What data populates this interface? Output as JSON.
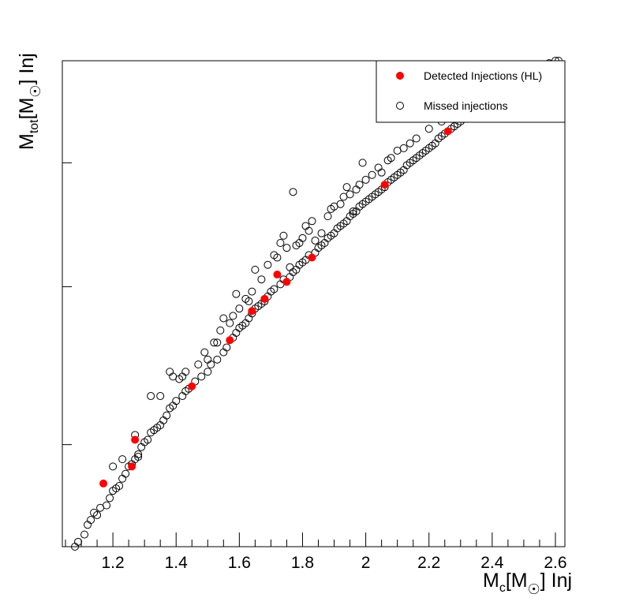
{
  "chart_data": {
    "type": "scatter",
    "xlabel": {
      "main": "M",
      "sub": "c",
      "rest": "[M",
      "sun_sub": "☉",
      "tail": "] Inj"
    },
    "ylabel": {
      "main": "M",
      "sub": "tot",
      "rest": "[M",
      "sun_sub": "☉",
      "tail": "] Inj"
    },
    "xlim": [
      1.04,
      2.63
    ],
    "x_ticks": [
      "1.2",
      "1.4",
      "1.6",
      "1.8",
      "2",
      "2.2",
      "2.4",
      "2.6"
    ],
    "x_tick_values": [
      1.2,
      1.4,
      1.6,
      1.8,
      2.0,
      2.2,
      2.4,
      2.6
    ],
    "y_tick_fractions": [
      0.21,
      0.535,
      0.79
    ],
    "grid": false,
    "legend_position": "top-right",
    "colors": {
      "detected": "#ff0000",
      "missed_edge": "#000000",
      "frame": "#000000"
    },
    "series": [
      {
        "name": "Detected Injections (HL)",
        "marker": "filled-circle",
        "points": [
          [
            1.17,
            0.13
          ],
          [
            1.27,
            0.22
          ],
          [
            1.26,
            0.165
          ],
          [
            1.45,
            0.33
          ],
          [
            1.57,
            0.425
          ],
          [
            1.64,
            0.485
          ],
          [
            1.68,
            0.51
          ],
          [
            1.72,
            0.56
          ],
          [
            1.75,
            0.545
          ],
          [
            1.83,
            0.595
          ],
          [
            2.06,
            0.745
          ],
          [
            2.26,
            0.855
          ]
        ]
      },
      {
        "name": "Missed injections",
        "marker": "open-circle",
        "points": [
          [
            1.08,
            0.0
          ],
          [
            1.09,
            0.01
          ],
          [
            1.11,
            0.025
          ],
          [
            1.12,
            0.045
          ],
          [
            1.13,
            0.055
          ],
          [
            1.14,
            0.07
          ],
          [
            1.15,
            0.065
          ],
          [
            1.16,
            0.08
          ],
          [
            1.18,
            0.085
          ],
          [
            1.19,
            0.1
          ],
          [
            1.2,
            0.115
          ],
          [
            1.21,
            0.12
          ],
          [
            1.22,
            0.125
          ],
          [
            1.23,
            0.14
          ],
          [
            1.24,
            0.15
          ],
          [
            1.25,
            0.165
          ],
          [
            1.26,
            0.17
          ],
          [
            1.27,
            0.18
          ],
          [
            1.28,
            0.19
          ],
          [
            1.27,
            0.23
          ],
          [
            1.29,
            0.205
          ],
          [
            1.3,
            0.215
          ],
          [
            1.31,
            0.22
          ],
          [
            1.32,
            0.235
          ],
          [
            1.33,
            0.24
          ],
          [
            1.34,
            0.245
          ],
          [
            1.35,
            0.25
          ],
          [
            1.36,
            0.26
          ],
          [
            1.37,
            0.27
          ],
          [
            1.38,
            0.285
          ],
          [
            1.39,
            0.29
          ],
          [
            1.4,
            0.3
          ],
          [
            1.42,
            0.31
          ],
          [
            1.43,
            0.32
          ],
          [
            1.44,
            0.325
          ],
          [
            1.46,
            0.34
          ],
          [
            1.48,
            0.35
          ],
          [
            1.5,
            0.36
          ],
          [
            1.51,
            0.375
          ],
          [
            1.53,
            0.385
          ],
          [
            1.55,
            0.4
          ],
          [
            1.56,
            0.41
          ],
          [
            1.58,
            0.43
          ],
          [
            1.59,
            0.44
          ],
          [
            1.6,
            0.45
          ],
          [
            1.61,
            0.455
          ],
          [
            1.62,
            0.46
          ],
          [
            1.63,
            0.47
          ],
          [
            1.64,
            0.48
          ],
          [
            1.65,
            0.49
          ],
          [
            1.66,
            0.495
          ],
          [
            1.67,
            0.5
          ],
          [
            1.68,
            0.505
          ],
          [
            1.69,
            0.515
          ],
          [
            1.7,
            0.525
          ],
          [
            1.71,
            0.53
          ],
          [
            1.73,
            0.54
          ],
          [
            1.74,
            0.55
          ],
          [
            1.76,
            0.555
          ],
          [
            1.77,
            0.565
          ],
          [
            1.78,
            0.57
          ],
          [
            1.79,
            0.58
          ],
          [
            1.8,
            0.585
          ],
          [
            1.81,
            0.59
          ],
          [
            1.82,
            0.6
          ],
          [
            1.84,
            0.605
          ],
          [
            1.85,
            0.615
          ],
          [
            1.86,
            0.62
          ],
          [
            1.87,
            0.625
          ],
          [
            1.88,
            0.635
          ],
          [
            1.89,
            0.64
          ],
          [
            1.9,
            0.645
          ],
          [
            1.91,
            0.655
          ],
          [
            1.92,
            0.66
          ],
          [
            1.93,
            0.665
          ],
          [
            1.94,
            0.67
          ],
          [
            1.95,
            0.68
          ],
          [
            1.96,
            0.685
          ],
          [
            1.97,
            0.69
          ],
          [
            1.98,
            0.7
          ],
          [
            1.99,
            0.705
          ],
          [
            2.0,
            0.71
          ],
          [
            2.01,
            0.715
          ],
          [
            2.02,
            0.72
          ],
          [
            2.03,
            0.725
          ],
          [
            2.04,
            0.73
          ],
          [
            2.05,
            0.735
          ],
          [
            2.06,
            0.74
          ],
          [
            2.07,
            0.75
          ],
          [
            2.08,
            0.755
          ],
          [
            2.09,
            0.76
          ],
          [
            2.1,
            0.765
          ],
          [
            2.11,
            0.77
          ],
          [
            2.12,
            0.775
          ],
          [
            2.13,
            0.785
          ],
          [
            2.14,
            0.79
          ],
          [
            2.15,
            0.795
          ],
          [
            2.16,
            0.8
          ],
          [
            2.17,
            0.805
          ],
          [
            2.18,
            0.81
          ],
          [
            2.19,
            0.815
          ],
          [
            2.2,
            0.82
          ],
          [
            2.21,
            0.825
          ],
          [
            2.22,
            0.83
          ],
          [
            2.23,
            0.84
          ],
          [
            2.24,
            0.845
          ],
          [
            2.25,
            0.85
          ],
          [
            2.27,
            0.86
          ],
          [
            2.28,
            0.865
          ],
          [
            2.29,
            0.87
          ],
          [
            2.3,
            0.875
          ],
          [
            2.31,
            0.88
          ],
          [
            2.32,
            0.885
          ],
          [
            2.33,
            0.89
          ],
          [
            2.34,
            0.895
          ],
          [
            2.35,
            0.9
          ],
          [
            2.36,
            0.905
          ],
          [
            2.37,
            0.91
          ],
          [
            2.38,
            0.915
          ],
          [
            2.39,
            0.92
          ],
          [
            2.4,
            0.925
          ],
          [
            2.41,
            0.93
          ],
          [
            2.42,
            0.935
          ],
          [
            2.43,
            0.94
          ],
          [
            2.44,
            0.945
          ],
          [
            2.46,
            0.955
          ],
          [
            2.48,
            0.965
          ],
          [
            2.5,
            0.97
          ],
          [
            2.52,
            0.98
          ],
          [
            2.55,
            0.99
          ],
          [
            2.58,
            0.995
          ],
          [
            2.6,
            1.0
          ],
          [
            2.61,
            1.0
          ],
          [
            1.2,
            0.165
          ],
          [
            1.23,
            0.18
          ],
          [
            1.28,
            0.185
          ],
          [
            1.32,
            0.31
          ],
          [
            1.35,
            0.31
          ],
          [
            1.38,
            0.36
          ],
          [
            1.39,
            0.35
          ],
          [
            1.41,
            0.345
          ],
          [
            1.42,
            0.35
          ],
          [
            1.43,
            0.36
          ],
          [
            1.47,
            0.375
          ],
          [
            1.5,
            0.385
          ],
          [
            1.49,
            0.4
          ],
          [
            1.52,
            0.42
          ],
          [
            1.53,
            0.42
          ],
          [
            1.55,
            0.47
          ],
          [
            1.54,
            0.445
          ],
          [
            1.57,
            0.46
          ],
          [
            1.58,
            0.475
          ],
          [
            1.59,
            0.52
          ],
          [
            1.6,
            0.49
          ],
          [
            1.62,
            0.51
          ],
          [
            1.63,
            0.505
          ],
          [
            1.65,
            0.57
          ],
          [
            1.64,
            0.525
          ],
          [
            1.67,
            0.55
          ],
          [
            1.69,
            0.58
          ],
          [
            1.71,
            0.6
          ],
          [
            1.72,
            0.595
          ],
          [
            1.73,
            0.625
          ],
          [
            1.74,
            0.64
          ],
          [
            1.75,
            0.615
          ],
          [
            1.76,
            0.575
          ],
          [
            1.77,
            0.73
          ],
          [
            1.78,
            0.62
          ],
          [
            1.79,
            0.625
          ],
          [
            1.8,
            0.635
          ],
          [
            1.81,
            0.66
          ],
          [
            1.82,
            0.65
          ],
          [
            1.83,
            0.67
          ],
          [
            1.84,
            0.63
          ],
          [
            1.86,
            0.645
          ],
          [
            1.88,
            0.68
          ],
          [
            1.89,
            0.695
          ],
          [
            1.9,
            0.7
          ],
          [
            1.92,
            0.705
          ],
          [
            1.93,
            0.72
          ],
          [
            1.94,
            0.74
          ],
          [
            1.95,
            0.725
          ],
          [
            1.96,
            0.69
          ],
          [
            1.97,
            0.735
          ],
          [
            1.98,
            0.745
          ],
          [
            1.99,
            0.79
          ],
          [
            2.0,
            0.755
          ],
          [
            2.02,
            0.765
          ],
          [
            2.04,
            0.78
          ],
          [
            2.05,
            0.77
          ],
          [
            2.07,
            0.795
          ],
          [
            2.08,
            0.8
          ],
          [
            2.1,
            0.815
          ],
          [
            2.12,
            0.82
          ],
          [
            2.14,
            0.83
          ],
          [
            2.16,
            0.84
          ],
          [
            2.2,
            0.86
          ],
          [
            2.24,
            0.875
          ],
          [
            2.28,
            0.89
          ],
          [
            2.32,
            0.9
          ],
          [
            2.36,
            0.91
          ],
          [
            2.44,
            0.95
          ],
          [
            2.47,
            0.96
          ]
        ]
      }
    ]
  }
}
